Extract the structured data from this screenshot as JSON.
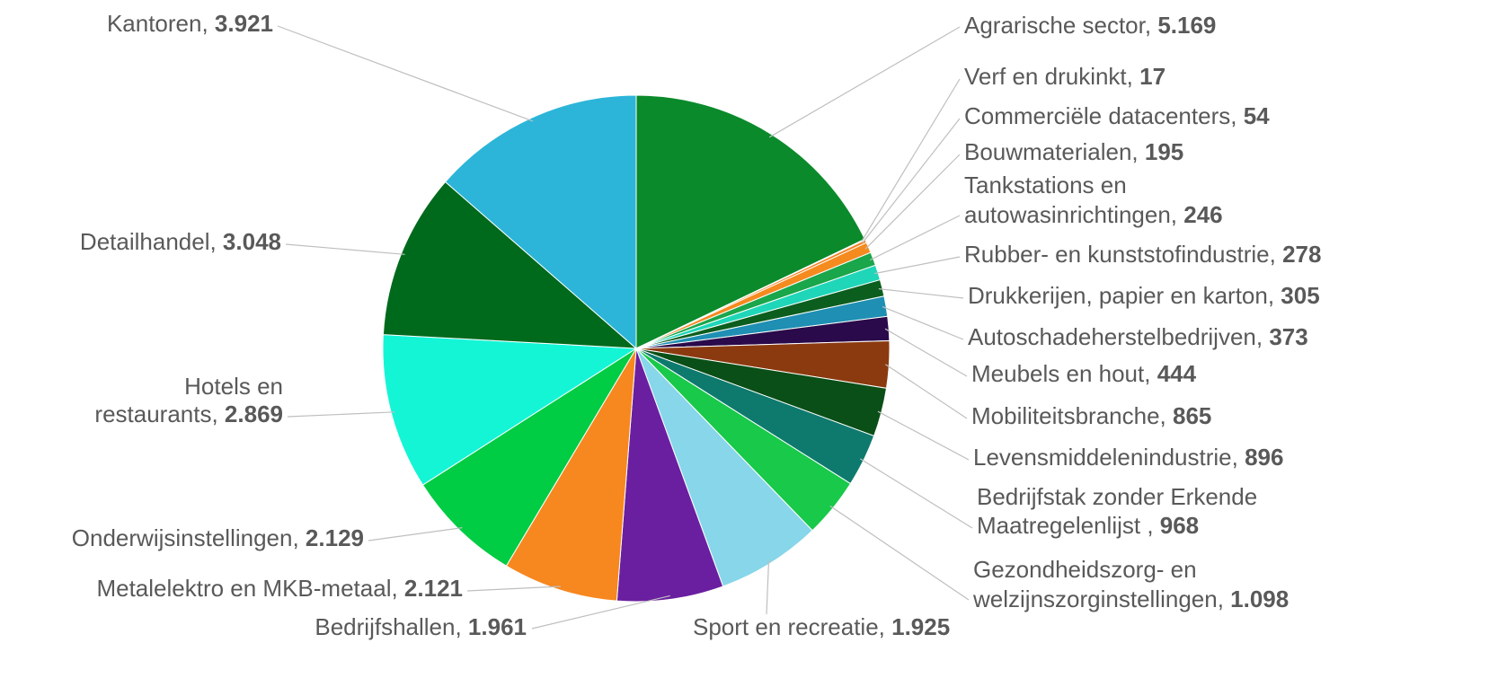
{
  "chart_data": {
    "type": "pie",
    "title": "",
    "start_angle_deg": 0,
    "direction": "clockwise",
    "slices": [
      {
        "label": [
          "Agrarische sector"
        ],
        "value_text": "5.169",
        "value": 5169,
        "color": "#0b8a2b"
      },
      {
        "label": [
          "Verf en drukinkt"
        ],
        "value_text": "17",
        "value": 17,
        "color": "#6a5acd"
      },
      {
        "label": [
          "Commerciële datacenters"
        ],
        "value_text": "54",
        "value": 54,
        "color": "#f58220"
      },
      {
        "label": [
          "Bouwmaterialen"
        ],
        "value_text": "195",
        "value": 195,
        "color": "#f58a1f"
      },
      {
        "label": [
          "Tankstations en",
          "autowasinrichtingen"
        ],
        "value_text": "246",
        "value": 246,
        "color": "#1aa64a"
      },
      {
        "label": [
          "Rubber- en kunststofindustrie"
        ],
        "value_text": "278",
        "value": 278,
        "color": "#1fd6b8"
      },
      {
        "label": [
          "Drukkerijen, papier en karton"
        ],
        "value_text": "305",
        "value": 305,
        "color": "#0c5e1e"
      },
      {
        "label": [
          "Autoschadeherstelbedrijven"
        ],
        "value_text": "373",
        "value": 373,
        "color": "#1f8fb3"
      },
      {
        "label": [
          "Meubels en hout"
        ],
        "value_text": "444",
        "value": 444,
        "color": "#2a0a4a"
      },
      {
        "label": [
          "Mobiliteitsbranche"
        ],
        "value_text": "865",
        "value": 865,
        "color": "#8b3a0f"
      },
      {
        "label": [
          "Levensmiddelenindustrie"
        ],
        "value_text": "896",
        "value": 896,
        "color": "#0a4f17"
      },
      {
        "label": [
          "Bedrijfstak zonder Erkende",
          "Maatregelenlijst"
        ],
        "value_text": "968",
        "value": 968,
        "color": "#0e7a6e",
        "label_sep": " , "
      },
      {
        "label": [
          "Gezondheidszorg- en",
          "welzijnszorginstellingen"
        ],
        "value_text": "1.098",
        "value": 1098,
        "color": "#18c94a"
      },
      {
        "label": [
          "Sport en recreatie"
        ],
        "value_text": "1.925",
        "value": 1925,
        "color": "#87d6ea"
      },
      {
        "label": [
          "Bedrijfshallen"
        ],
        "value_text": "1.961",
        "value": 1961,
        "color": "#6a1fa0"
      },
      {
        "label": [
          "Metalelektro en MKB-metaal"
        ],
        "value_text": "2.121",
        "value": 2121,
        "color": "#f7871f"
      },
      {
        "label": [
          "Onderwijsinstellingen"
        ],
        "value_text": "2.129",
        "value": 2129,
        "color": "#00cc44"
      },
      {
        "label": [
          "Hotels en",
          "restaurants"
        ],
        "value_text": "2.869",
        "value": 2869,
        "color": "#14f5d6"
      },
      {
        "label": [
          "Detailhandel"
        ],
        "value_text": "3.048",
        "value": 3048,
        "color": "#006a1c"
      },
      {
        "label": [
          "Kantoren"
        ],
        "value_text": "3.921",
        "value": 3921,
        "color": "#2cb5d8"
      }
    ]
  }
}
